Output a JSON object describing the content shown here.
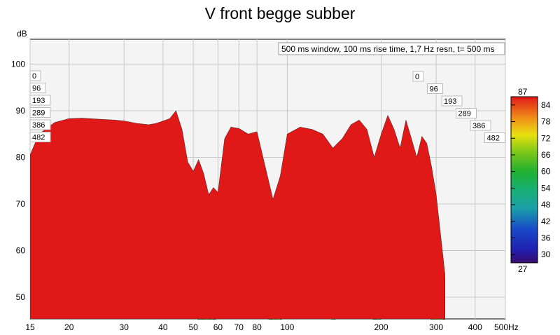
{
  "chart_data": {
    "type": "waterfall",
    "title": "V front begge subber",
    "ylabel": "dB",
    "xunit": "Hz",
    "settings_text": "500 ms window, 100 ms rise time,  1,7 Hz resn, t= 500 ms",
    "x_ticks": [
      "15",
      "20",
      "30",
      "40",
      "50",
      "60",
      "70",
      "80",
      "100",
      "200",
      "300",
      "400",
      "500Hz"
    ],
    "x_tick_values": [
      15,
      20,
      30,
      40,
      50,
      60,
      70,
      80,
      100,
      200,
      300,
      400,
      500
    ],
    "y_ticks": [
      50,
      60,
      70,
      80,
      90,
      100
    ],
    "time_ticks_ms": [
      "0",
      "96",
      "193",
      "289",
      "386",
      "482"
    ],
    "colorbar": {
      "max_label": "87",
      "min_label": "27",
      "ticks": [
        "84",
        "78",
        "72",
        "66",
        "60",
        "54",
        "48",
        "42",
        "36",
        "30"
      ],
      "range": [
        27,
        87
      ]
    },
    "front_slice": {
      "time_ms": 0,
      "freq_hz": [
        15,
        16,
        18,
        20,
        22,
        25,
        28,
        30,
        33,
        36,
        38,
        40,
        42,
        44,
        46,
        48,
        50,
        52,
        54,
        56,
        58,
        60,
        63,
        66,
        70,
        75,
        80,
        85,
        90,
        95,
        100,
        110,
        120,
        130,
        140,
        150,
        160,
        170,
        180,
        190,
        200,
        210,
        220,
        230,
        240,
        250,
        260,
        270,
        280,
        290,
        300,
        320
      ],
      "level_db": [
        80.5,
        85.0,
        87.5,
        88.3,
        88.4,
        88.2,
        88.0,
        87.8,
        87.3,
        87.0,
        87.3,
        87.8,
        88.3,
        90.0,
        86.0,
        79.0,
        77.0,
        79.5,
        76.5,
        72.0,
        73.5,
        72.5,
        84.0,
        86.5,
        86.2,
        85.0,
        85.5,
        78.0,
        71.0,
        76.0,
        85.0,
        86.5,
        86.0,
        85.0,
        82.0,
        84.0,
        87.0,
        88.0,
        86.0,
        80.0,
        85.0,
        89.0,
        86.0,
        82.0,
        88.0,
        84.0,
        80.0,
        84.5,
        83.0,
        78.0,
        72.0,
        55.0
      ]
    }
  }
}
